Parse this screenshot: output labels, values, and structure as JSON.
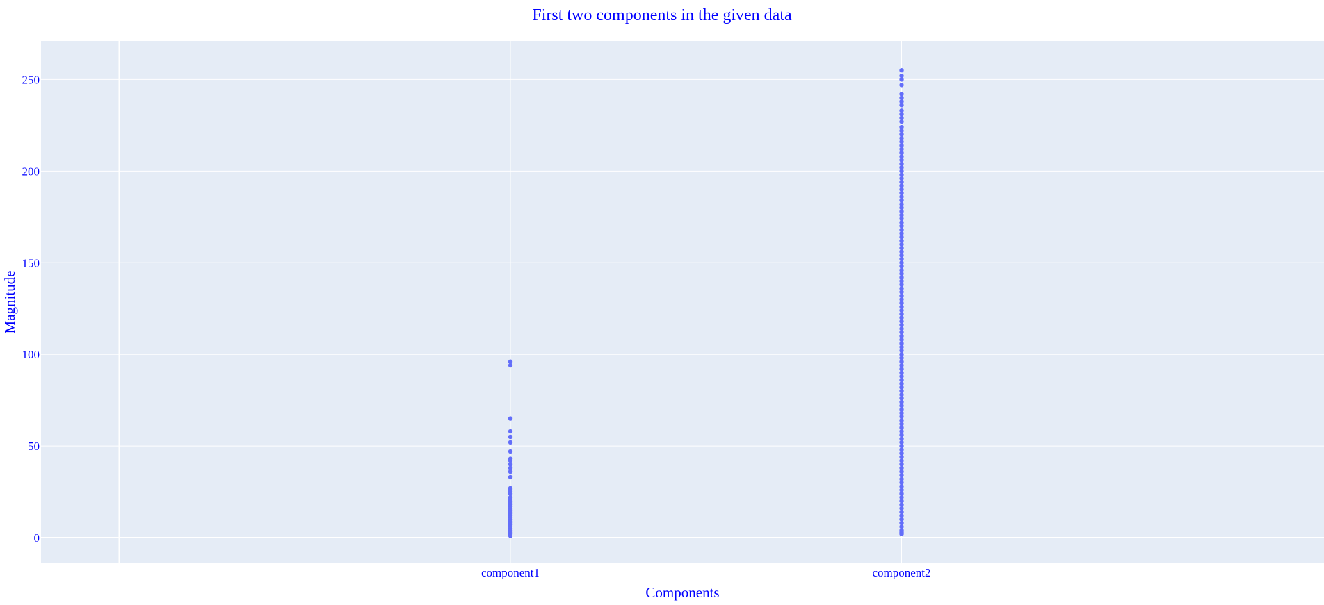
{
  "chart_data": {
    "type": "scatter",
    "title": "First two components in the given data",
    "xlabel": "Components",
    "ylabel": "Magnitude",
    "categories": [
      "component1",
      "component2"
    ],
    "ylim": [
      -14,
      271
    ],
    "y_ticks": [
      0,
      50,
      100,
      150,
      200,
      250
    ],
    "grid": true,
    "legend": "none",
    "colors": {
      "marker": "#636efa",
      "plot_bg": "#e5ecf6",
      "grid": "#ffffff",
      "text": "#0000ff"
    },
    "series": [
      {
        "category": "component1",
        "y": [
          96,
          94,
          65,
          58,
          55,
          52,
          47,
          43,
          42,
          40,
          38,
          36,
          33,
          27,
          26,
          25,
          24,
          22,
          21,
          20,
          19,
          18,
          17,
          16,
          15,
          14,
          13,
          12,
          11,
          10,
          9,
          8,
          7,
          6,
          5,
          4,
          3,
          2,
          1
        ]
      },
      {
        "category": "component2",
        "y": [
          255,
          252,
          250,
          247,
          242,
          240,
          238,
          236,
          233,
          231,
          229,
          227,
          224,
          222,
          220,
          218,
          216,
          214,
          212,
          210,
          208,
          206,
          204,
          202,
          200,
          198,
          196,
          194,
          192,
          190,
          188,
          186,
          184,
          182,
          180,
          178,
          176,
          174,
          172,
          170,
          168,
          166,
          164,
          162,
          160,
          158,
          156,
          154,
          152,
          150,
          148,
          146,
          144,
          142,
          140,
          138,
          136,
          134,
          132,
          130,
          128,
          126,
          124,
          122,
          120,
          118,
          116,
          114,
          112,
          110,
          108,
          106,
          104,
          102,
          100,
          98,
          96,
          94,
          92,
          90,
          88,
          86,
          84,
          82,
          80,
          78,
          76,
          74,
          72,
          70,
          68,
          66,
          64,
          62,
          60,
          58,
          56,
          54,
          52,
          50,
          48,
          46,
          44,
          42,
          40,
          38,
          36,
          34,
          32,
          30,
          28,
          26,
          24,
          22,
          20,
          18,
          16,
          14,
          12,
          10,
          8,
          6,
          4,
          3,
          2
        ]
      }
    ]
  }
}
